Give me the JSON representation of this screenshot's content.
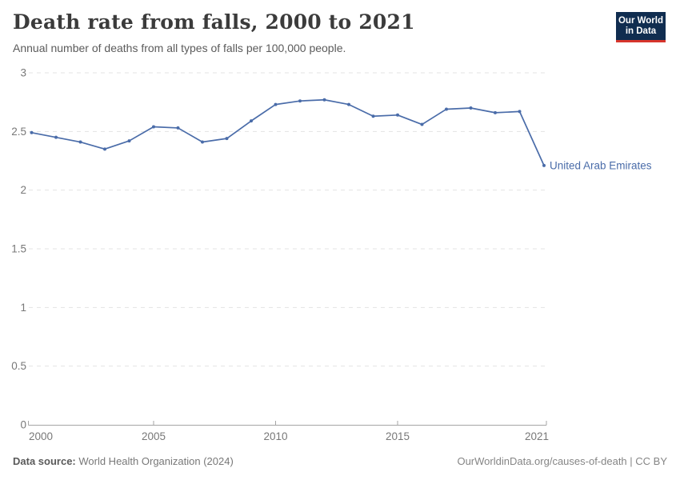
{
  "header": {
    "title": "Death rate from falls, 2000 to 2021",
    "subtitle": "Annual number of deaths from all types of falls per 100,000 people.",
    "logo": {
      "line1": "Our World",
      "line2": "in Data",
      "bg_color": "#102d50",
      "accent_color": "#d7352c"
    }
  },
  "chart_data": {
    "type": "line",
    "title": "Death rate from falls, 2000 to 2021",
    "subtitle": "Annual number of deaths from all types of falls per 100,000 people.",
    "x": [
      2000,
      2001,
      2002,
      2003,
      2004,
      2005,
      2006,
      2007,
      2008,
      2009,
      2010,
      2011,
      2012,
      2013,
      2014,
      2015,
      2016,
      2017,
      2018,
      2019,
      2020,
      2021
    ],
    "series": [
      {
        "name": "United Arab Emirates",
        "color": "#4a6ca9",
        "values": [
          2.49,
          2.45,
          2.41,
          2.35,
          2.42,
          2.54,
          2.53,
          2.41,
          2.44,
          2.59,
          2.73,
          2.76,
          2.77,
          2.73,
          2.63,
          2.64,
          2.56,
          2.69,
          2.7,
          2.66,
          2.67,
          2.21
        ]
      }
    ],
    "xlabel": "",
    "ylabel": "",
    "ylim": [
      0,
      3
    ],
    "y_ticks": [
      0,
      0.5,
      1,
      1.5,
      2,
      2.5,
      3
    ],
    "x_ticks": [
      2000,
      2005,
      2010,
      2015,
      2021
    ],
    "grid": "horizontal-dashed",
    "legend_position": "end-of-line-label",
    "axis_color": "#a5a5a5",
    "grid_color": "#e3e3e3",
    "tick_label_color": "#787878"
  },
  "footer": {
    "source_label": "Data source:",
    "source_value": " World Health Organization (2024)",
    "right_text": "OurWorldinData.org/causes-of-death | CC BY"
  }
}
